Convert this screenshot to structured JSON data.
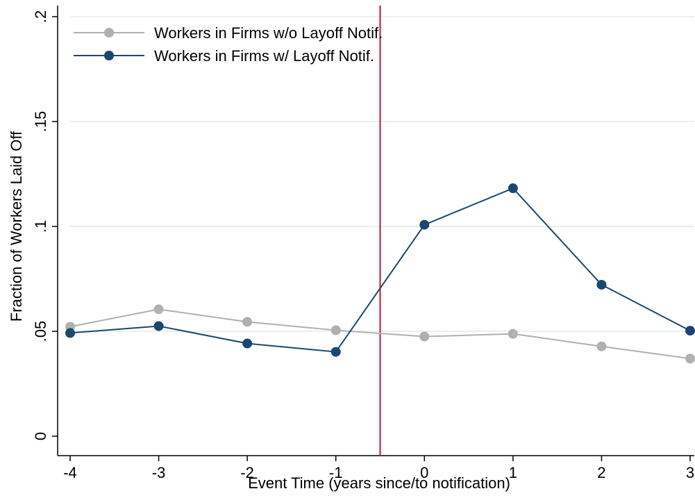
{
  "chart_data": {
    "type": "line",
    "title": "",
    "xlabel": "Event Time (years since/to notification)",
    "ylabel": "Fraction of Workers Laid Off",
    "x": [
      -4,
      -3,
      -2,
      -1,
      0,
      1,
      2,
      3
    ],
    "xlim": [
      -4,
      3
    ],
    "ylim": [
      0,
      0.2
    ],
    "x_ticks": [
      -4,
      -3,
      -2,
      -1,
      0,
      1,
      2,
      3
    ],
    "x_tick_labels": [
      "-4",
      "-3",
      "-2",
      "-1",
      "0",
      "1",
      "2",
      "3"
    ],
    "y_ticks": [
      0,
      0.05,
      0.1,
      0.15,
      0.2
    ],
    "y_tick_labels": [
      "0",
      ".05",
      ".1",
      ".15",
      ".2"
    ],
    "grid": "horizontal",
    "legend_position": "top-left",
    "reference_line": {
      "x": -0.5,
      "color": "#c8102e"
    },
    "series": [
      {
        "name": "Workers in Firms w/o Layoff Notif.",
        "color": "#b0b0b0",
        "values": [
          0.0522,
          0.0605,
          0.0545,
          0.0505,
          0.0475,
          0.0488,
          0.0428,
          0.037
        ]
      },
      {
        "name": "Workers in Firms w/ Layoff Notif.",
        "color": "#1a476f",
        "values": [
          0.0492,
          0.0525,
          0.0442,
          0.0402,
          0.1008,
          0.1182,
          0.0722,
          0.0503
        ]
      }
    ]
  }
}
